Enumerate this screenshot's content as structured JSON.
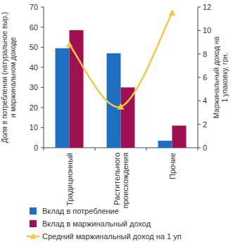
{
  "chart_data": {
    "type": "bar",
    "categories": [
      "Традиционный",
      "Растительного происхождения",
      "Прочие"
    ],
    "series": [
      {
        "name": "Вклад в потребление",
        "color": "#1f6fc0",
        "values": [
          49.5,
          47,
          3.5
        ]
      },
      {
        "name": "Вклад в маржинальный доход",
        "color": "#9e1050",
        "values": [
          58.5,
          30,
          11
        ]
      },
      {
        "name": "Средний маржинальный доход на 1 уп",
        "color": "#f5c84a",
        "type": "line",
        "marker": "triangle",
        "axis": "y2",
        "values": [
          8.8,
          3.5,
          11.5
        ]
      }
    ],
    "ylabel": "Доля в потреблении (натуральное выр.) и маржинальном доходе",
    "y2label": "Маржинальный доход на 1 упаковку, грн.",
    "ylim": [
      0,
      70
    ],
    "yticks": [
      0,
      10,
      20,
      30,
      40,
      50,
      60,
      70
    ],
    "y2lim": [
      0,
      12
    ],
    "y2ticks": [
      0,
      2,
      4,
      6,
      8,
      10,
      12
    ],
    "legend": "bottom"
  }
}
